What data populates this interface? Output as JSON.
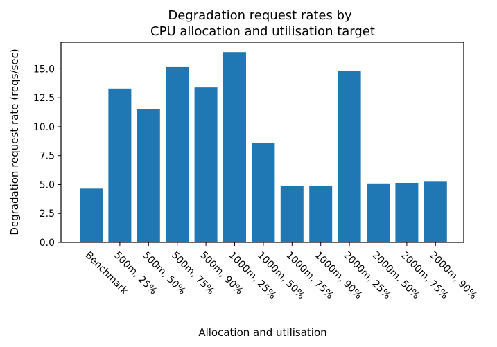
{
  "chart_data": {
    "type": "bar",
    "title_lines": [
      "Degradation request rates by",
      "CPU allocation and utilisation target"
    ],
    "xlabel": "Allocation and utilisation",
    "ylabel": "Degradation request rate (reqs/sec)",
    "categories": [
      "Benchmark",
      "500m, 25%",
      "500m, 50%",
      "500m, 75%",
      "500m, 90%",
      "1000m, 25%",
      "1000m, 50%",
      "1000m, 75%",
      "1000m, 90%",
      "2000m, 25%",
      "2000m, 50%",
      "2000m, 75%",
      "2000m, 90%"
    ],
    "values": [
      4.65,
      13.3,
      11.55,
      15.15,
      13.4,
      16.45,
      8.6,
      4.85,
      4.9,
      14.8,
      5.1,
      5.15,
      5.25
    ],
    "ylim": [
      0,
      17.3
    ],
    "yticks": [
      0.0,
      2.5,
      5.0,
      7.5,
      10.0,
      12.5,
      15.0
    ],
    "ytick_labels": [
      "0.0",
      "2.5",
      "5.0",
      "7.5",
      "10.0",
      "12.5",
      "15.0"
    ],
    "bar_color": "#1f77b4",
    "grid": false,
    "legend": "none"
  }
}
